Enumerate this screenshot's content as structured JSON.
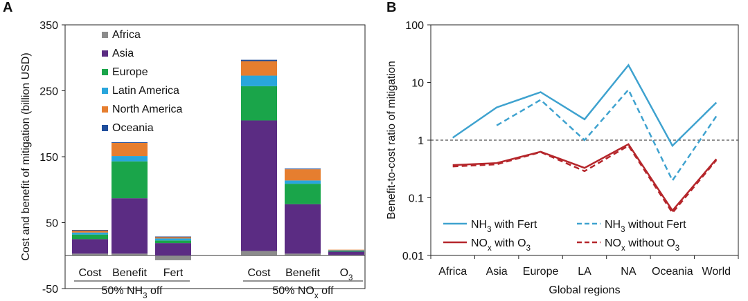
{
  "panels": {
    "a_letter": "A",
    "b_letter": "B"
  },
  "chart_data": [
    {
      "type": "bar",
      "stacked": true,
      "ylabel": "Cost and benefit of mitigation (billion USD)",
      "ylim": [
        -50,
        350
      ],
      "yticks": [
        "-50",
        "50",
        "150",
        "250",
        "350"
      ],
      "legend_position": "top-left",
      "categories": [
        "Cost",
        "Benefit",
        "Fert",
        "Cost",
        "Benefit",
        "O3"
      ],
      "category_labels": [
        {
          "main": "Cost",
          "sub": ""
        },
        {
          "main": "Benefit",
          "sub": ""
        },
        {
          "main": "Fert",
          "sub": ""
        },
        {
          "main": "Cost",
          "sub": ""
        },
        {
          "main": "Benefit",
          "sub": ""
        },
        {
          "main": "O",
          "sub": "3"
        }
      ],
      "groups": [
        {
          "label_pre": "50% NH",
          "label_sub": "3",
          "label_post": " off",
          "categories": [
            0,
            1,
            2
          ]
        },
        {
          "label_pre": "50% NO",
          "label_sub": "x",
          "label_post": " off",
          "categories": [
            3,
            4,
            5
          ]
        }
      ],
      "series": [
        {
          "name": "Africa",
          "color": "#8c8c8c",
          "values": [
            3,
            3,
            -7,
            7,
            3,
            1
          ]
        },
        {
          "name": "Asia",
          "color": "#5b2c83",
          "values": [
            22,
            84,
            19,
            198,
            75,
            5
          ]
        },
        {
          "name": "Europe",
          "color": "#1aa54a",
          "values": [
            7,
            56,
            4,
            52,
            31,
            1
          ]
        },
        {
          "name": "Latin America",
          "color": "#29a6dc",
          "values": [
            3,
            8,
            3,
            16,
            5,
            1
          ]
        },
        {
          "name": "North America",
          "color": "#e67e2f",
          "values": [
            3,
            20,
            2,
            22,
            17,
            1
          ]
        },
        {
          "name": "Oceania",
          "color": "#1f4e9c",
          "values": [
            1,
            1,
            1,
            2,
            1,
            0
          ]
        }
      ]
    },
    {
      "type": "line",
      "ylabel": "Benefit-to-cost ratio of mitigation",
      "xlabel": "Global regions",
      "yscale": "log",
      "ylim": [
        0.01,
        100
      ],
      "yticks": [
        "0.01",
        "0.1",
        "1",
        "10",
        "100"
      ],
      "reference_line": 1,
      "categories": [
        "Africa",
        "Asia",
        "Europe",
        "LA",
        "NA",
        "Oceania",
        "World"
      ],
      "legend_position": "bottom",
      "series": [
        {
          "name_pre": "NH",
          "name_sub": "3",
          "name_post": " with Fert",
          "color": "#3ea2cf",
          "dash": false,
          "values": [
            1.1,
            3.7,
            6.8,
            2.3,
            20,
            0.8,
            4.5
          ]
        },
        {
          "name_pre": "NH",
          "name_sub": "3",
          "name_post": " without Fert",
          "color": "#3ea2cf",
          "dash": true,
          "values": [
            null,
            1.8,
            5.0,
            1.0,
            7.5,
            0.2,
            2.6
          ]
        },
        {
          "name_pre": "NO",
          "name_sub": "x",
          "name_post": " with O",
          "name_sub2": "3",
          "color": "#b5262b",
          "dash": false,
          "values": [
            0.37,
            0.4,
            0.63,
            0.33,
            0.85,
            0.06,
            0.47
          ]
        },
        {
          "name_pre": "NO",
          "name_sub": "x",
          "name_post": " without O",
          "name_sub2": "3",
          "color": "#b5262b",
          "dash": true,
          "values": [
            0.35,
            0.38,
            0.62,
            0.29,
            0.8,
            0.055,
            0.45
          ]
        }
      ]
    }
  ]
}
